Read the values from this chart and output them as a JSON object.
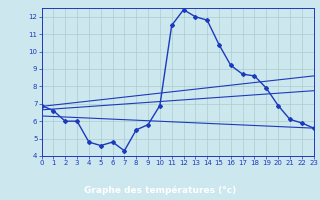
{
  "hours": [
    0,
    1,
    2,
    3,
    4,
    5,
    6,
    7,
    8,
    9,
    10,
    11,
    12,
    13,
    14,
    15,
    16,
    17,
    18,
    19,
    20,
    21,
    22,
    23
  ],
  "temp": [
    6.9,
    6.6,
    6.0,
    6.0,
    4.8,
    4.6,
    4.8,
    4.3,
    5.5,
    5.8,
    6.9,
    11.5,
    12.4,
    12.0,
    11.8,
    10.4,
    9.2,
    8.7,
    8.6,
    7.9,
    6.9,
    6.1,
    5.9,
    5.6
  ],
  "ylim": [
    4,
    12.5
  ],
  "xlim": [
    0,
    23
  ],
  "yticks": [
    4,
    5,
    6,
    7,
    8,
    9,
    10,
    11,
    12
  ],
  "xticks": [
    0,
    1,
    2,
    3,
    4,
    5,
    6,
    7,
    8,
    9,
    10,
    11,
    12,
    13,
    14,
    15,
    16,
    17,
    18,
    19,
    20,
    21,
    22,
    23
  ],
  "xlabel": "Graphe des températures (°c)",
  "line_color": "#1c3abd",
  "bg_color": "#cce8ee",
  "grid_color": "#aacccc",
  "axis_color": "#1c3abd",
  "label_color": "#1c3abd",
  "xbar_color": "#1c3abd",
  "xbar_text_color": "#ffffff",
  "trend_lines": [
    {
      "x0": 0,
      "y0": 6.85,
      "x1": 23,
      "y1": 8.6
    },
    {
      "x0": 0,
      "y0": 6.65,
      "x1": 23,
      "y1": 7.75
    },
    {
      "x0": 0,
      "y0": 6.3,
      "x1": 23,
      "y1": 5.6
    }
  ]
}
